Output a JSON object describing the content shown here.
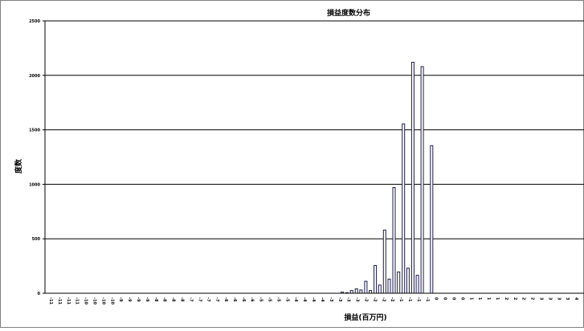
{
  "chart_data": {
    "type": "bar",
    "title": "損益度数分布",
    "xlabel": "損益(百万円)",
    "ylabel": "度数",
    "ylim": [
      0,
      2500
    ],
    "yticks": [
      "0",
      "500",
      "1000",
      "1500",
      "2000",
      "2500"
    ],
    "grid": true,
    "legend": "none",
    "categories": [
      "-11",
      "-11",
      "-11",
      "-11",
      "-10",
      "-10",
      "-10",
      "-10",
      "-9",
      "-9",
      "-9",
      "-9",
      "-8",
      "-8",
      "-8",
      "-8",
      "-7",
      "-7",
      "-7",
      "-7",
      "-6",
      "-6",
      "-6",
      "-6",
      "-5",
      "-5",
      "-5",
      "-5",
      "-4",
      "-4",
      "-4",
      "-4",
      "-3",
      "-3",
      "-3",
      "-3",
      "-2",
      "-2",
      "-2",
      "-2",
      "-1",
      "-1",
      "-1",
      "-1",
      "0",
      "0",
      "0",
      "0",
      "1",
      "1",
      "1",
      "1",
      "2",
      "2",
      "2",
      "2",
      "3",
      "3",
      "3",
      "3",
      "4"
    ],
    "x_tick_labels": [
      "-11",
      "-11",
      "-11",
      "-11",
      "-10",
      "-10",
      "-10",
      "-10",
      "-9",
      "-9",
      "-9",
      "-9",
      "-8",
      "-8",
      "-8",
      "-8",
      "-7",
      "-7",
      "-7",
      "-7",
      "-6",
      "-6",
      "-6",
      "-6",
      "-5",
      "-5",
      "-5",
      "-5",
      "-4",
      "-4",
      "-4",
      "-4",
      "-3",
      "-3",
      "-3",
      "-3",
      "-2",
      "-2",
      "-2",
      "-2",
      "-1",
      "-1",
      "-1",
      "-1",
      "0",
      "0",
      "0",
      "0",
      "1",
      "1",
      "1",
      "1",
      "2",
      "2",
      "2",
      "2",
      "3",
      "3",
      "3",
      "3",
      "4"
    ],
    "series": [
      {
        "values": [
          0,
          0,
          0,
          0,
          0,
          0,
          0,
          0,
          0,
          0,
          0,
          0,
          0,
          0,
          0,
          0,
          0,
          0,
          0,
          0,
          0,
          0,
          0,
          0,
          0,
          0,
          0,
          0,
          0,
          0,
          0,
          0,
          0,
          0,
          0,
          0,
          0,
          0,
          0,
          0,
          5,
          40,
          110,
          255,
          580,
          970,
          1555,
          2120,
          2080,
          1355,
          0,
          0,
          0,
          0,
          0,
          0,
          0,
          0,
          0,
          0,
          0
        ],
        "values_inner": [
          0,
          0,
          0,
          0,
          0,
          0,
          0,
          0,
          0,
          0,
          0,
          0,
          0,
          0,
          0,
          0,
          0,
          0,
          0,
          0,
          0,
          0,
          0,
          0,
          0,
          0,
          0,
          0,
          0,
          0,
          0,
          0,
          0,
          0,
          0,
          0,
          0,
          0,
          0,
          0,
          10,
          25,
          30,
          25,
          75,
          130,
          195,
          230,
          165,
          0,
          0,
          0,
          0,
          0,
          0,
          0,
          0,
          0,
          0,
          0,
          0
        ]
      }
    ]
  }
}
